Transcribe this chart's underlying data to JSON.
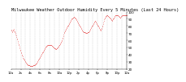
{
  "title": "Milwaukee Weather Outdoor Humidity Every 5 Minutes (Last 24 Hours)",
  "title_fontsize": 3.8,
  "title_color": "#000000",
  "line_color": "#dd0000",
  "background_color": "#ffffff",
  "grid_color": "#bbbbbb",
  "ylim": [
    20,
    100
  ],
  "yticks": [
    20,
    30,
    40,
    50,
    60,
    70,
    80,
    90,
    100
  ],
  "ylabel_fontsize": 3.0,
  "xlabel_fontsize": 2.8,
  "y_data": [
    75,
    74,
    73,
    72,
    74,
    75,
    76,
    74,
    73,
    71,
    70,
    68,
    67,
    65,
    63,
    61,
    59,
    57,
    55,
    53,
    51,
    49,
    47,
    46,
    44,
    42,
    40,
    39,
    38,
    36,
    35,
    34,
    33,
    32,
    31,
    30,
    29,
    29,
    28,
    27,
    27,
    26,
    26,
    25,
    25,
    25,
    24,
    24,
    24,
    24,
    24,
    24,
    24,
    24,
    25,
    25,
    25,
    26,
    26,
    27,
    27,
    28,
    28,
    29,
    30,
    31,
    32,
    33,
    34,
    35,
    36,
    37,
    38,
    39,
    40,
    41,
    42,
    43,
    44,
    45,
    46,
    47,
    48,
    49,
    50,
    51,
    51,
    52,
    52,
    53,
    53,
    53,
    54,
    54,
    54,
    54,
    54,
    53,
    53,
    53,
    52,
    52,
    51,
    51,
    50,
    50,
    49,
    49,
    49,
    48,
    48,
    48,
    49,
    49,
    50,
    50,
    51,
    52,
    53,
    54,
    55,
    56,
    57,
    58,
    59,
    60,
    62,
    64,
    66,
    68,
    70,
    72,
    73,
    74,
    75,
    76,
    77,
    78,
    79,
    80,
    81,
    82,
    83,
    84,
    85,
    86,
    87,
    88,
    89,
    90,
    91,
    91,
    92,
    92,
    93,
    93,
    92,
    92,
    91,
    90,
    89,
    88,
    87,
    86,
    85,
    84,
    83,
    82,
    81,
    80,
    79,
    78,
    77,
    76,
    75,
    74,
    73,
    73,
    72,
    72,
    71,
    71,
    71,
    70,
    70,
    70,
    70,
    70,
    71,
    71,
    72,
    72,
    73,
    74,
    75,
    76,
    77,
    78,
    79,
    80,
    81,
    82,
    83,
    84,
    85,
    86,
    87,
    87,
    86,
    85,
    84,
    83,
    82,
    81,
    80,
    79,
    78,
    77,
    76,
    75,
    74,
    75,
    76,
    77,
    79,
    81,
    83,
    85,
    87,
    89,
    91,
    92,
    93,
    94,
    94,
    95,
    95,
    95,
    94,
    94,
    93,
    93,
    92,
    92,
    91,
    90,
    89,
    88,
    87,
    88,
    89,
    90,
    91,
    92,
    93,
    94,
    95,
    95,
    95,
    95,
    95,
    95,
    95,
    95,
    94,
    94,
    93,
    93,
    92,
    92,
    93,
    94,
    94,
    95,
    95,
    95,
    95,
    95,
    95,
    95,
    95,
    95,
    95,
    95,
    95,
    95
  ]
}
